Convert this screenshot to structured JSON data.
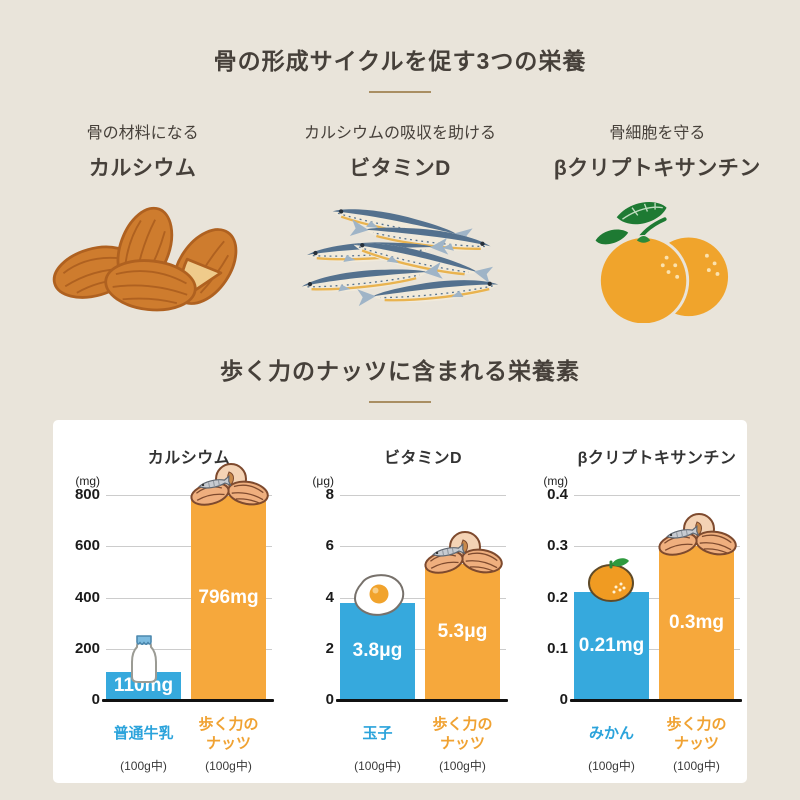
{
  "page": {
    "background_color": "#E9E4DA",
    "card_color": "#FFFFFF",
    "accent_underline_color": "#A98E62"
  },
  "section1": {
    "title": "骨の形成サイクルを促す3つの栄養",
    "items": [
      {
        "caption": "骨の材料になる",
        "name": "カルシウム",
        "icon": "almonds-illustration"
      },
      {
        "caption": "カルシウムの吸収を助ける",
        "name": "ビタミンD",
        "icon": "sardines-illustration"
      },
      {
        "caption": "骨細胞を守る",
        "name": "βクリプトキサンチン",
        "icon": "mandarin-oranges-illustration"
      }
    ]
  },
  "section2": {
    "title": "歩く力のナッツに含まれる栄養素"
  },
  "chart_data": [
    {
      "type": "bar",
      "title": "カルシウム",
      "unit_label": "(mg)",
      "ylim": [
        0,
        800
      ],
      "yticks": [
        800,
        600,
        400,
        200,
        0
      ],
      "grid": true,
      "categories": [
        "普通牛乳",
        "歩く力の\nナッツ"
      ],
      "values": [
        110,
        796
      ],
      "value_labels": [
        "110mg",
        "796mg"
      ],
      "per_labels": [
        "(100g中)",
        "(100g中)"
      ],
      "bar_colors": [
        "#36A9DD",
        "#F6A83C"
      ],
      "label_colors": [
        "#2BA3DB",
        "#F0A232"
      ],
      "icons": [
        "milk-bottle",
        "nuts"
      ]
    },
    {
      "type": "bar",
      "title": "ビタミンD",
      "unit_label": "(μg)",
      "ylim": [
        0,
        8
      ],
      "yticks": [
        8,
        6,
        4,
        2,
        0
      ],
      "grid": true,
      "categories": [
        "玉子",
        "歩く力の\nナッツ"
      ],
      "values": [
        3.8,
        5.3
      ],
      "value_labels": [
        "3.8μg",
        "5.3μg"
      ],
      "per_labels": [
        "(100g中)",
        "(100g中)"
      ],
      "bar_colors": [
        "#36A9DD",
        "#F6A83C"
      ],
      "label_colors": [
        "#2BA3DB",
        "#F0A232"
      ],
      "icons": [
        "fried-egg",
        "nuts"
      ]
    },
    {
      "type": "bar",
      "title": "βクリプトキサンチン",
      "unit_label": "(mg)",
      "ylim": [
        0,
        0.4
      ],
      "yticks": [
        0.4,
        0.3,
        0.2,
        0.1,
        0
      ],
      "grid": true,
      "categories": [
        "みかん",
        "歩く力の\nナッツ"
      ],
      "values": [
        0.21,
        0.3
      ],
      "value_labels": [
        "0.21mg",
        "0.3mg"
      ],
      "per_labels": [
        "(100g中)",
        "(100g中)"
      ],
      "bar_colors": [
        "#36A9DD",
        "#F6A83C"
      ],
      "label_colors": [
        "#2BA3DB",
        "#F0A232"
      ],
      "icons": [
        "mandarin",
        "nuts"
      ]
    }
  ],
  "colors": {
    "bar_blue": "#36A9DD",
    "bar_orange": "#F6A83C",
    "label_blue": "#2BA3DB",
    "label_orange": "#F0A232",
    "gridline": "#CCCCCC",
    "axis_baseline": "#111111",
    "title_text": "#46403A"
  }
}
